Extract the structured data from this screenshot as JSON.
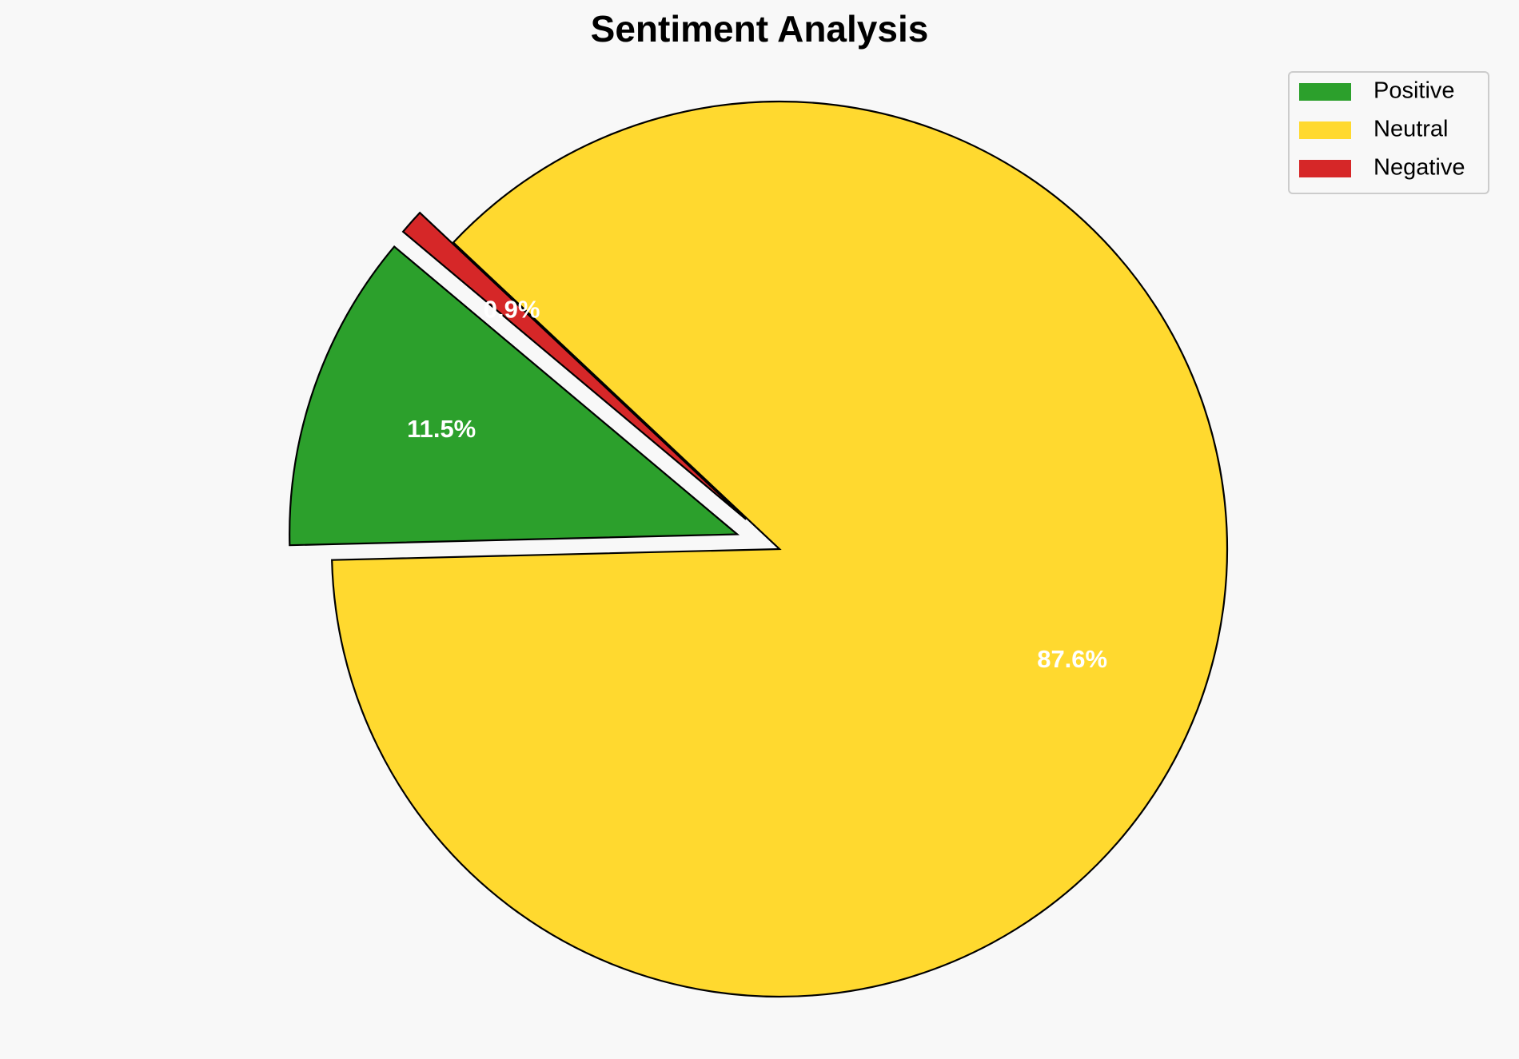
{
  "chart_data": {
    "type": "pie",
    "title": "Sentiment Analysis",
    "categories": [
      "Positive",
      "Neutral",
      "Negative"
    ],
    "values": [
      11.5,
      87.6,
      0.9
    ],
    "value_labels": [
      "11.5%",
      "87.6%",
      "0.9%"
    ],
    "colors": [
      "#2ca02c",
      "#ffd92f",
      "#d62728"
    ],
    "explode": [
      0.1,
      0,
      0.1
    ],
    "startangle": 140,
    "legend": "upper right"
  }
}
